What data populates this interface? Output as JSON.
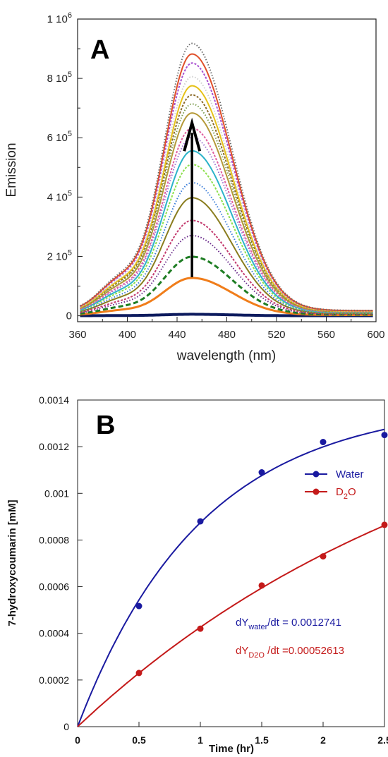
{
  "chart_data": [
    {
      "type": "line",
      "panel_label": "A",
      "xlabel": "wavelength (nm)",
      "ylabel": "Emission",
      "xlim": [
        360,
        600
      ],
      "ylim": [
        -20000,
        1000000
      ],
      "xticks": [
        "360",
        "400",
        "440",
        "480",
        "520",
        "560",
        "600"
      ],
      "yticks": [
        {
          "value": 0,
          "mant": "0",
          "exp": ""
        },
        {
          "value": 200000,
          "mant": "2 10",
          "exp": "5"
        },
        {
          "value": 400000,
          "mant": "4 10",
          "exp": "5"
        },
        {
          "value": 600000,
          "mant": "6 10",
          "exp": "5"
        },
        {
          "value": 800000,
          "mant": "8 10",
          "exp": "5"
        },
        {
          "value": 1000000,
          "mant": "1 10",
          "exp": "6"
        }
      ],
      "peak_wavelength": 452,
      "arrow": {
        "x": 452,
        "y_from": 130000,
        "y_to": 650000
      },
      "series": [
        {
          "peak": 5000,
          "color": "#0d1b5e"
        },
        {
          "peak": 125000,
          "color": "#f07d1a"
        },
        {
          "peak": 195000,
          "color": "#1e7d23"
        },
        {
          "peak": 265000,
          "color": "#6b2d8c"
        },
        {
          "peak": 315000,
          "color": "#c33a6e"
        },
        {
          "peak": 390000,
          "color": "#8a7d1e"
        },
        {
          "peak": 440000,
          "color": "#3b7dd8"
        },
        {
          "peak": 500000,
          "color": "#8de04c"
        },
        {
          "peak": 545000,
          "color": "#2bb3c9"
        },
        {
          "peak": 590000,
          "color": "#9b6fd1"
        },
        {
          "peak": 620000,
          "color": "#e05fa0"
        },
        {
          "peak": 670000,
          "color": "#b59a3a"
        },
        {
          "peak": 700000,
          "color": "#7a9a4a"
        },
        {
          "peak": 730000,
          "color": "#8c6b2a"
        },
        {
          "peak": 760000,
          "color": "#e6c21a"
        },
        {
          "peak": 790000,
          "color": "#cfcfcf"
        },
        {
          "peak": 835000,
          "color": "#a84fd0"
        },
        {
          "peak": 865000,
          "color": "#e0502a"
        },
        {
          "peak": 900000,
          "color": "#6e6e6e"
        }
      ]
    },
    {
      "type": "line",
      "panel_label": "B",
      "xlabel": "Time (hr)",
      "ylabel": "7-hydroxycoumarin [mM]",
      "xlim": [
        0,
        2.5
      ],
      "ylim": [
        0,
        0.0014
      ],
      "xticks": [
        "0",
        "0.5",
        "1",
        "1.5",
        "2",
        "2.5"
      ],
      "yticks": [
        "0",
        "0.0002",
        "0.0004",
        "0.0006",
        "0.0008",
        "0.001",
        "0.0012",
        "0.0014"
      ],
      "legend_placement": "top-right",
      "series": [
        {
          "name": "Water",
          "name_main": "D",
          "name_sub": "",
          "name_rest": "",
          "color": "#1a1aa0",
          "x": [
            0.5,
            1,
            1.5,
            2,
            2.5
          ],
          "y": [
            0.000517,
            0.00088,
            0.00109,
            0.00122,
            0.00125
          ],
          "fit": "exponential"
        },
        {
          "name": "D2O",
          "name_main": "D",
          "name_sub": "2",
          "name_rest": "O",
          "color": "#c41a1a",
          "x": [
            0.5,
            1,
            1.5,
            2,
            2.5
          ],
          "y": [
            0.00023,
            0.00042,
            0.000605,
            0.00073,
            0.000865
          ],
          "fit": "exponential"
        }
      ],
      "annotations": [
        {
          "pre": "dY",
          "sub": "water",
          "post": "/dt = 0.0012741",
          "color": "#1a1aa0"
        },
        {
          "pre": "dY",
          "sub": "D2O",
          "post": " /dt =0.00052613",
          "color": "#c41a1a"
        }
      ]
    }
  ]
}
